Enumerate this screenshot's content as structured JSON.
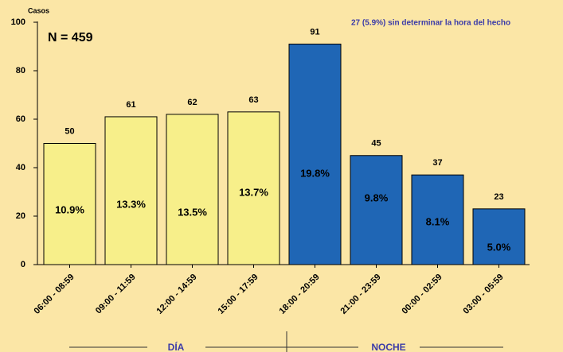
{
  "chart_data": {
    "type": "bar",
    "y_label": "Casos",
    "subtitle": "N = 459",
    "annotation": "27 (5.9%) sin determinar la hora del hecho",
    "categories": [
      "06:00 - 08:59",
      "09:00 - 11:59",
      "12:00 - 14:59",
      "15:00 - 17:59",
      "18:00 - 20:59",
      "21:00 - 23:59",
      "00:00 - 02:59",
      "03:00 - 05:59"
    ],
    "values": [
      50,
      61,
      62,
      63,
      91,
      45,
      37,
      23
    ],
    "percent_labels": [
      "10.9%",
      "13.3%",
      "13.5%",
      "13.7%",
      "19.8%",
      "9.8%",
      "8.1%",
      "5.0%"
    ],
    "colors": [
      "#f7ef8a",
      "#f7ef8a",
      "#f7ef8a",
      "#f7ef8a",
      "#1f66b5",
      "#1f66b5",
      "#1f66b5",
      "#1f66b5"
    ],
    "group_labels": [
      "DÍA",
      "NOCHE"
    ],
    "ylim": [
      0,
      100
    ],
    "yticks": [
      0,
      20,
      40,
      60,
      80,
      100
    ]
  }
}
